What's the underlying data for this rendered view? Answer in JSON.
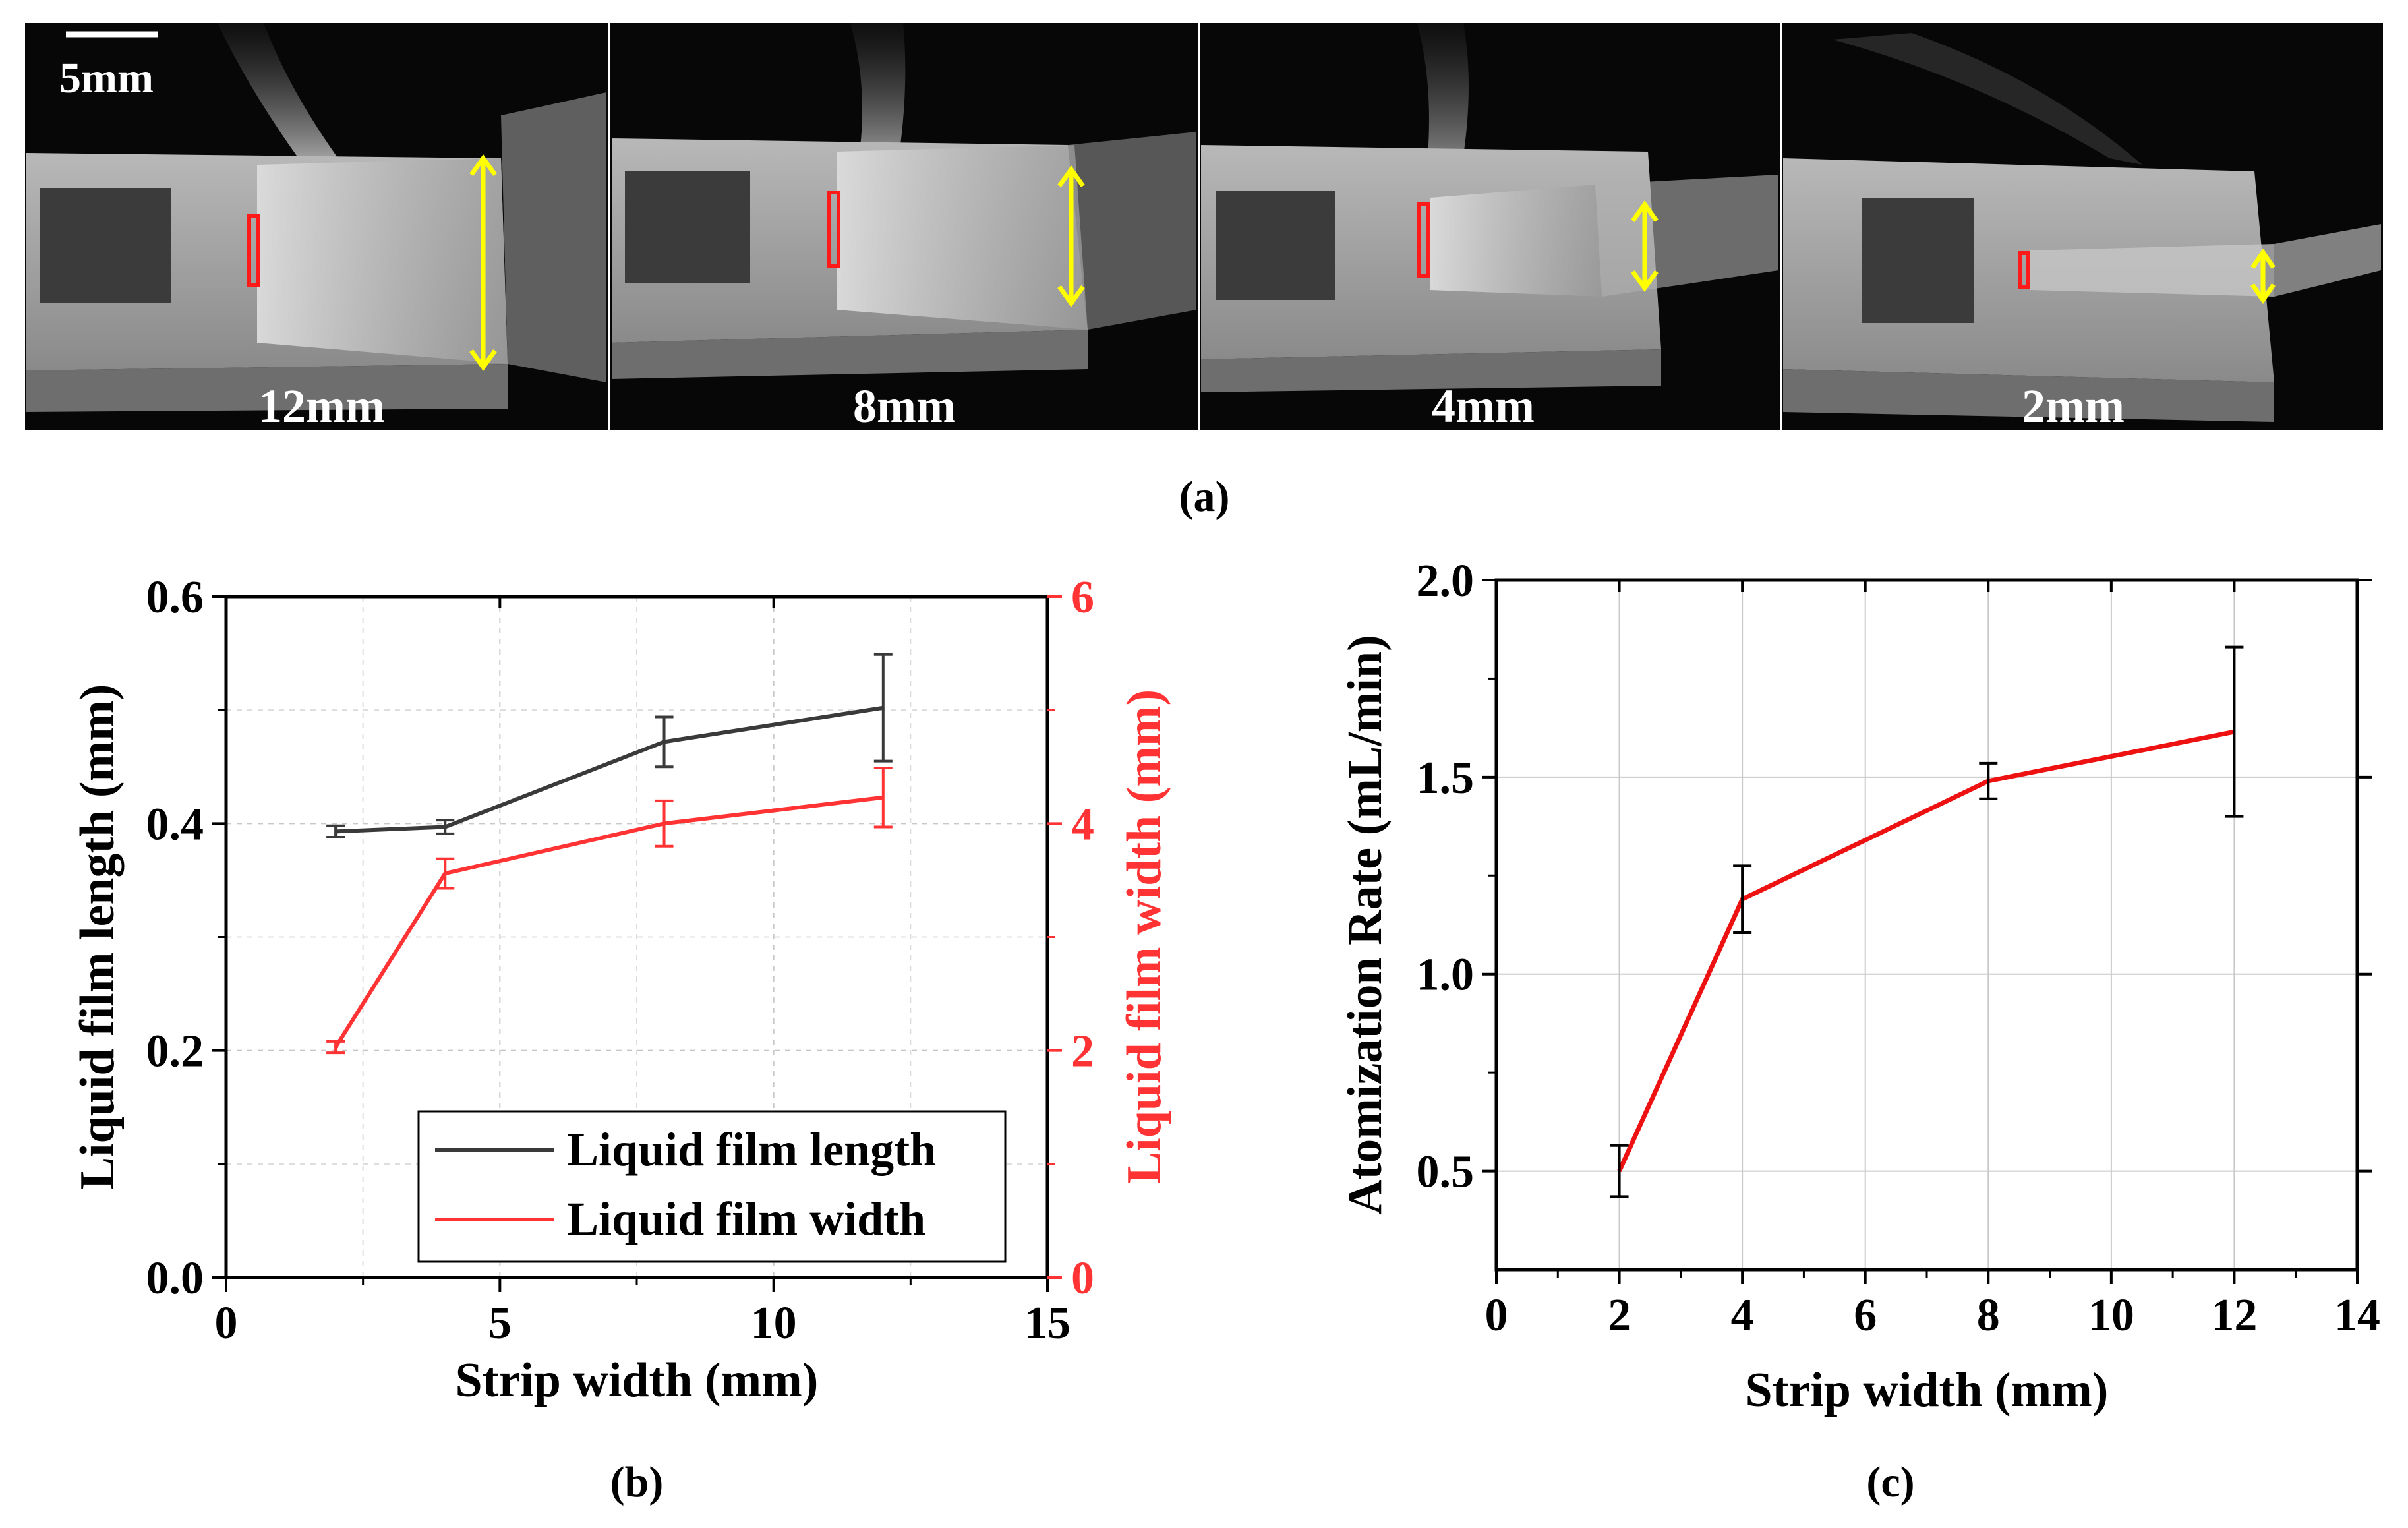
{
  "figure_a": {
    "scale_bar_label": "5mm",
    "panels": [
      {
        "label": "12mm",
        "strip_width_mm": 12
      },
      {
        "label": "8mm",
        "strip_width_mm": 8
      },
      {
        "label": "4mm",
        "strip_width_mm": 4
      },
      {
        "label": "2mm",
        "strip_width_mm": 2
      }
    ],
    "caption": "(a)"
  },
  "chart_data": [
    {
      "type": "line",
      "caption": "(b)",
      "xlabel": "Strip width (mm)",
      "ylabel": "Liquid film length (mm)",
      "y2label": "Liquid film width (mm)",
      "xlim": [
        0,
        15
      ],
      "ylim": [
        0,
        0.6
      ],
      "y2lim": [
        0,
        6
      ],
      "xticks": [
        "0",
        "5",
        "10",
        "15"
      ],
      "yticks": [
        "0.0",
        "0.2",
        "0.4",
        "0.6"
      ],
      "y2ticks": [
        "0",
        "2",
        "4",
        "6"
      ],
      "grid": true,
      "legend": "bottom-right",
      "colors": {
        "length": "#3a3a3a",
        "width": "#ff3333"
      },
      "series": [
        {
          "name": "Liquid film length",
          "axis": "left",
          "x": [
            2,
            4,
            8,
            12
          ],
          "values": [
            0.393,
            0.397,
            0.472,
            0.502
          ],
          "errors": [
            0.005,
            0.006,
            0.022,
            0.047
          ]
        },
        {
          "name": "Liquid film width",
          "axis": "right",
          "x": [
            2,
            4,
            8,
            12
          ],
          "values": [
            2.03,
            3.56,
            4.0,
            4.23
          ],
          "errors": [
            0.05,
            0.13,
            0.2,
            0.26
          ]
        }
      ]
    },
    {
      "type": "line",
      "caption": "(c)",
      "xlabel": "Strip width (mm)",
      "ylabel": "Atomization Rate (mL/min)",
      "xlim": [
        0,
        14
      ],
      "ylim": [
        0.25,
        2.0
      ],
      "xticks": [
        "0",
        "2",
        "4",
        "6",
        "8",
        "10",
        "12",
        "14"
      ],
      "yticks": [
        "0.5",
        "1.0",
        "1.5",
        "2.0"
      ],
      "grid": true,
      "colors": {
        "line": "#ee1111"
      },
      "series": [
        {
          "name": "Atomization Rate",
          "x": [
            2,
            4,
            8,
            12
          ],
          "values": [
            0.5,
            1.19,
            1.49,
            1.615
          ],
          "errors": [
            0.065,
            0.085,
            0.045,
            0.215
          ]
        }
      ]
    }
  ]
}
